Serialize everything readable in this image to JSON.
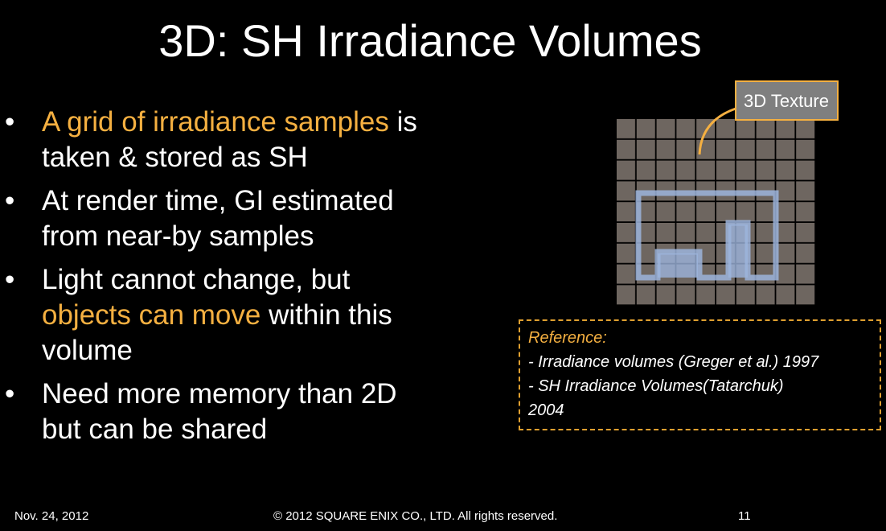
{
  "title": "3D: SH Irradiance Volumes",
  "bullets": [
    {
      "lines": [
        [
          {
            "text": "A grid of irradiance samples",
            "color": "#f5b041"
          },
          {
            "text": " is",
            "color": "#ffffff"
          }
        ],
        [
          {
            "text": "taken & stored as SH",
            "color": "#ffffff"
          }
        ]
      ]
    },
    {
      "lines": [
        [
          {
            "text": "At render time, GI estimated",
            "color": "#ffffff"
          }
        ],
        [
          {
            "text": "from near-by samples",
            "color": "#ffffff"
          }
        ]
      ]
    },
    {
      "lines": [
        [
          {
            "text": "Light cannot change, but",
            "color": "#ffffff"
          }
        ],
        [
          {
            "text": "objects can move",
            "color": "#f5b041"
          },
          {
            "text": " within this",
            "color": "#ffffff"
          }
        ],
        [
          {
            "text": "volume",
            "color": "#ffffff"
          }
        ]
      ]
    },
    {
      "lines": [
        [
          {
            "text": "Need more memory than 2D",
            "color": "#ffffff"
          }
        ],
        [
          {
            "text": "but can be shared",
            "color": "#ffffff"
          }
        ]
      ]
    }
  ],
  "diagram": {
    "label": "3D Texture"
  },
  "reference": {
    "heading": "Reference:",
    "lines": [
      "- Irradiance volumes (Greger et al.) 1997",
      "- SH Irradiance Volumes(Tatarchuk)",
      "2004"
    ]
  },
  "footer": {
    "date": "Nov. 24, 2012",
    "copyright": "© 2012 SQUARE ENIX CO., LTD. All rights reserved.",
    "page": "11"
  }
}
